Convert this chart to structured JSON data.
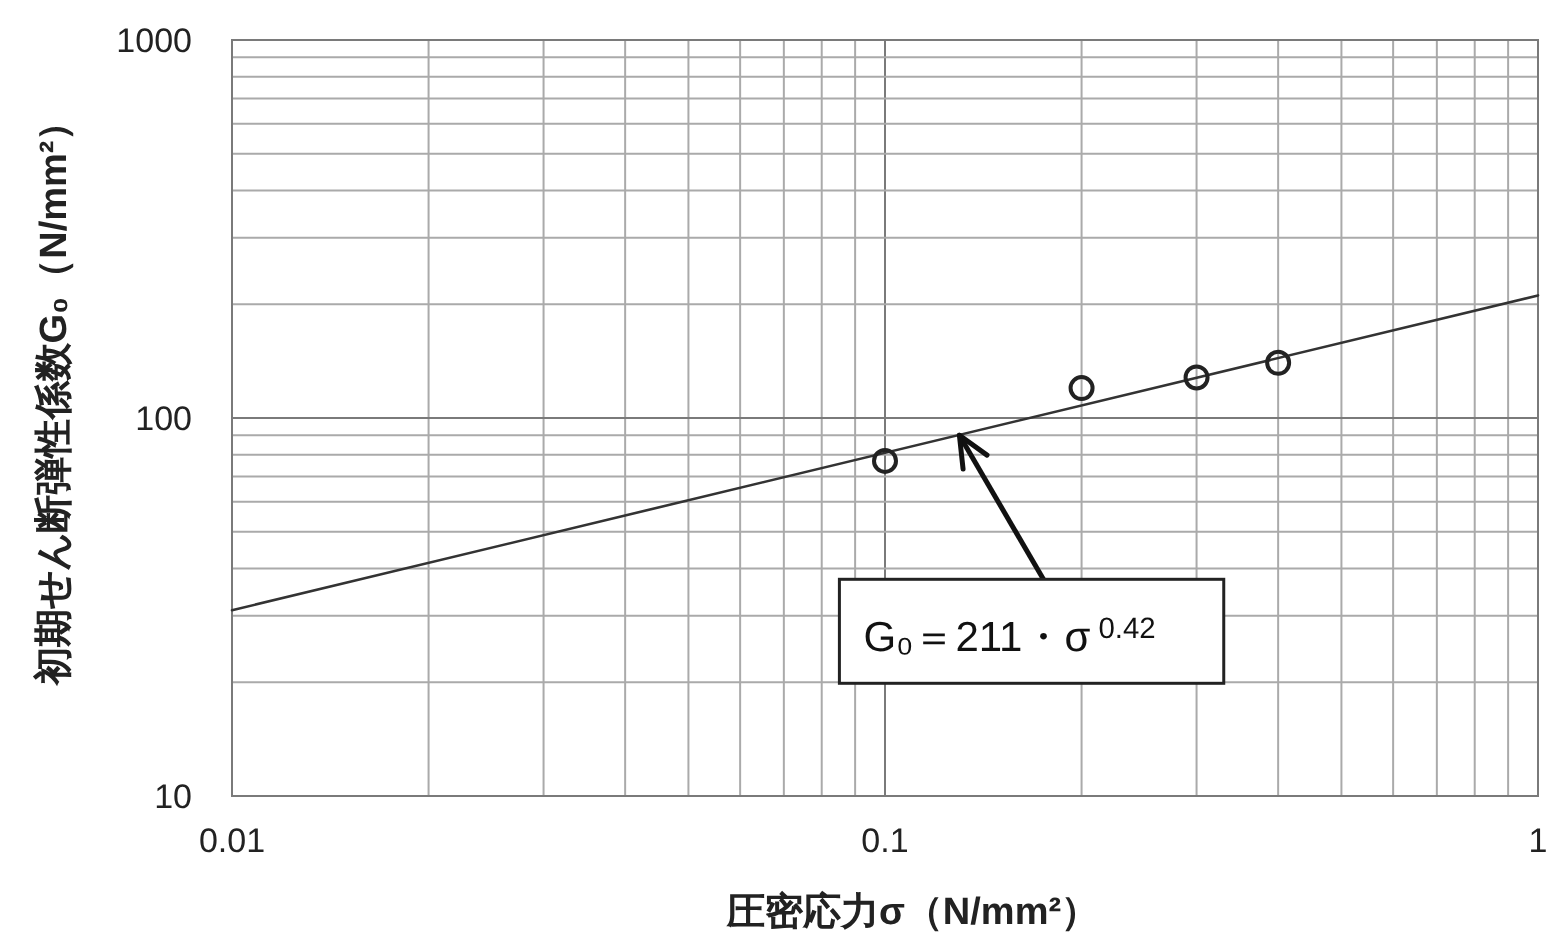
{
  "chart_data": {
    "type": "scatter",
    "xlabel": "圧密応力σ（N/mm²）",
    "ylabel": "初期せん断弾性係数G₀（N/mm²）",
    "log": "xy",
    "xlim": [
      0.01,
      1
    ],
    "ylim": [
      10,
      1000
    ],
    "xticks": [
      0.01,
      {
        "value": 0.02,
        "label": null
      },
      {
        "value": 0.03,
        "label": null
      },
      {
        "value": 0.04,
        "label": null
      },
      {
        "value": 0.05,
        "label": null
      },
      {
        "value": 0.06,
        "label": null
      },
      {
        "value": 0.07,
        "label": null
      },
      {
        "value": 0.08,
        "label": null
      },
      {
        "value": 0.09,
        "label": null
      },
      0.1,
      {
        "value": 0.2,
        "label": null
      },
      {
        "value": 0.3,
        "label": null
      },
      {
        "value": 0.4,
        "label": null
      },
      {
        "value": 0.5,
        "label": null
      },
      {
        "value": 0.6,
        "label": null
      },
      {
        "value": 0.7,
        "label": null
      },
      {
        "value": 0.8,
        "label": null
      },
      {
        "value": 0.9,
        "label": null
      },
      1
    ],
    "yticks": [
      10,
      {
        "value": 20,
        "label": null
      },
      {
        "value": 30,
        "label": null
      },
      {
        "value": 40,
        "label": null
      },
      {
        "value": 50,
        "label": null
      },
      {
        "value": 60,
        "label": null
      },
      {
        "value": 70,
        "label": null
      },
      {
        "value": 80,
        "label": null
      },
      {
        "value": 90,
        "label": null
      },
      100,
      {
        "value": 200,
        "label": null
      },
      {
        "value": 300,
        "label": null
      },
      {
        "value": 400,
        "label": null
      },
      {
        "value": 500,
        "label": null
      },
      {
        "value": 600,
        "label": null
      },
      {
        "value": 700,
        "label": null
      },
      {
        "value": 800,
        "label": null
      },
      {
        "value": 900,
        "label": null
      },
      1000
    ],
    "grid": true,
    "marker": "circle",
    "series": [
      {
        "color": "#222222",
        "x": [
          0.1,
          0.2,
          0.3,
          0.4
        ],
        "values": [
          77,
          120,
          128,
          140
        ]
      },
      {
        "type": "line",
        "color": "#333333",
        "marker": "none",
        "x": [
          0.01,
          1
        ],
        "values": [
          31,
          211
        ]
      }
    ],
    "annotations": [
      {
        "text": "G₀＝211・σ$^{0.42}$",
        "x": 0.13,
        "y": 90
      }
    ]
  }
}
